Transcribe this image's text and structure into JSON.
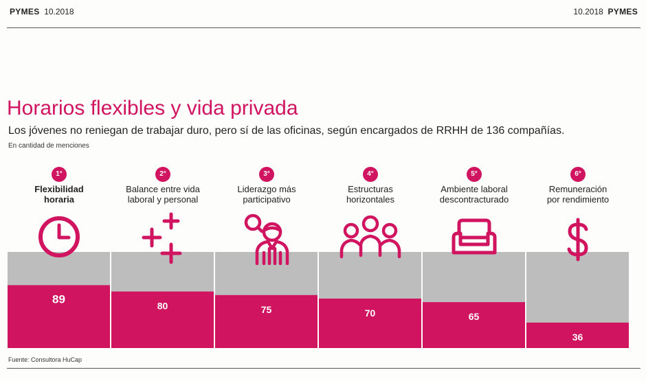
{
  "header": {
    "left_brand": "PYMES",
    "left_date": "10.2018",
    "right_date": "10.2018",
    "right_brand": "PYMES"
  },
  "chart_data": {
    "type": "bar",
    "title": "Horarios flexibles y vida privada",
    "subtitle": "Los jóvenes no reniegan de trabajar duro, pero sí de las oficinas, según encargados de RRHH de 136 compañías.",
    "unit_note": "En cantidad de menciones",
    "ranks": [
      "1°",
      "2°",
      "3°",
      "4°",
      "5°",
      "6°"
    ],
    "categories": [
      "Flexibilidad horaria",
      "Balance entre vida laboral y personal",
      "Liderazgo más participativo",
      "Estructuras horizontales",
      "Ambiente laboral descontracturado",
      "Remuneración por rendimiento"
    ],
    "labels": {
      "c0": [
        "Flexibilidad",
        "horaria"
      ],
      "c1": [
        "Balance entre vida",
        "laboral y personal"
      ],
      "c2": [
        "Liderazgo más",
        "participativo"
      ],
      "c3": [
        "Estructuras",
        "horizontales"
      ],
      "c4": [
        "Ambiente laboral",
        "descontracturado"
      ],
      "c5": [
        "Remuneración",
        "por rendimiento"
      ]
    },
    "values": [
      89,
      80,
      75,
      70,
      65,
      36
    ],
    "ylim": [
      0,
      136
    ],
    "icons": [
      "clock-icon",
      "plus-signs-icon",
      "person-search-icon",
      "group-icon",
      "armchair-icon",
      "dollar-icon"
    ],
    "colors": {
      "bar": "#d01460",
      "background": "#bdbdbd",
      "title": "#d01460"
    },
    "source": "Fuente: Consultora HuCap"
  }
}
